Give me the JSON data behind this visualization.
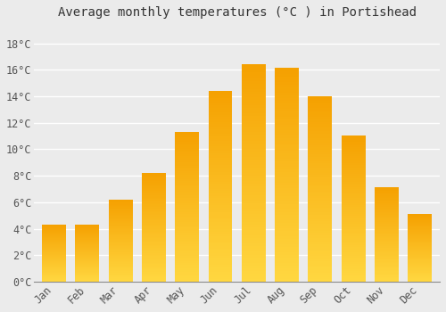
{
  "months": [
    "Jan",
    "Feb",
    "Mar",
    "Apr",
    "May",
    "Jun",
    "Jul",
    "Aug",
    "Sep",
    "Oct",
    "Nov",
    "Dec"
  ],
  "values": [
    4.3,
    4.3,
    6.2,
    8.2,
    11.3,
    14.4,
    16.4,
    16.1,
    14.0,
    11.0,
    7.1,
    5.1
  ],
  "title": "Average monthly temperatures (°C ) in Portishead",
  "bar_color_bottom": "#FFB300",
  "bar_color_top": "#F5A000",
  "background_color": "#EBEBEB",
  "grid_color": "#FFFFFF",
  "yticks": [
    0,
    2,
    4,
    6,
    8,
    10,
    12,
    14,
    16,
    18
  ],
  "ylim": [
    0,
    19.5
  ],
  "title_fontsize": 10,
  "tick_fontsize": 8.5
}
